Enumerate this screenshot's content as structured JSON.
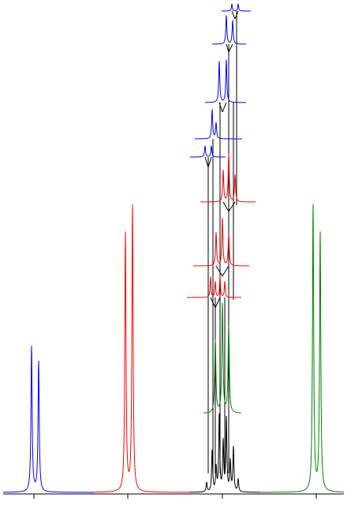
{
  "diagram": {
    "type": "nmr-splitting-tree",
    "axis": {
      "tick_count": 4
    },
    "colors": {
      "axis": "#000000",
      "peak_a": "#0000ff",
      "peak_b": "#ff0000",
      "peak_c": "#000000",
      "peak_d": "#008000",
      "tree_lines": "#000000"
    },
    "spectrum_peaks": [
      {
        "id": "peak-a",
        "color_key": "peak_a",
        "multiplicity": "doublet",
        "relative_height": 0.49
      },
      {
        "id": "peak-b",
        "color_key": "peak_b",
        "multiplicity": "doublet",
        "relative_height": 1.0
      },
      {
        "id": "peak-c",
        "color_key": "peak_c",
        "multiplicity": "multiplet",
        "relative_height": 0.27
      },
      {
        "id": "peak-d",
        "color_key": "peak_d",
        "multiplicity": "doublet",
        "relative_height": 1.0
      }
    ],
    "splitting_tree": [
      {
        "level": 1,
        "color_key": "peak_d",
        "multiplicity": "doublet"
      },
      {
        "level": 2,
        "color_key": "peak_b",
        "multiplicity": "doublet-of-doublets"
      },
      {
        "level": 3,
        "color_key": "peak_b",
        "multiplicity": "doublet-of-doublets"
      },
      {
        "level": 4,
        "color_key": "peak_b",
        "multiplicity": "doublet-of-doublets"
      },
      {
        "level": 5,
        "color_key": "peak_a",
        "multiplicity": "doublet"
      },
      {
        "level": 6,
        "color_key": "peak_a",
        "multiplicity": "doublet"
      },
      {
        "level": 7,
        "color_key": "peak_a",
        "multiplicity": "doublet"
      },
      {
        "level": 8,
        "color_key": "peak_a",
        "multiplicity": "doublet"
      },
      {
        "level": 9,
        "color_key": "peak_a",
        "multiplicity": "doublet"
      }
    ]
  }
}
